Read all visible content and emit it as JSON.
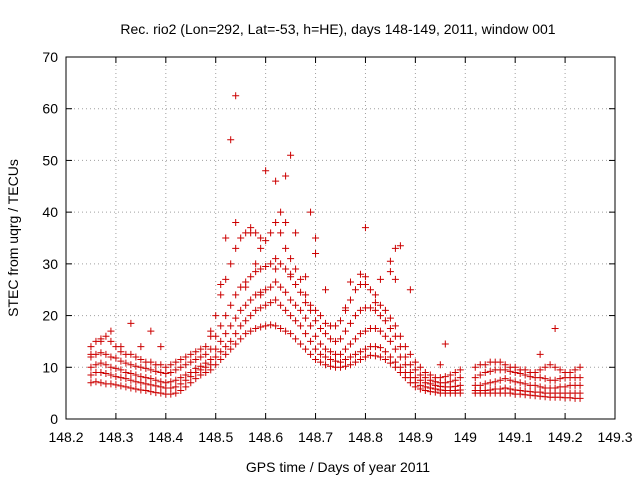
{
  "chart_data": {
    "type": "scatter",
    "title": "Rec. rio2 (Lon=292, Lat=-53, h=HE), days 148-149, 2011, window 001",
    "xlabel": "GPS time / Days of year 2011",
    "ylabel": "STEC from uqrg / TECUs",
    "xlim": [
      148.2,
      149.3
    ],
    "ylim": [
      0,
      70
    ],
    "xticks": [
      "148.2",
      "148.3",
      "148.4",
      "148.5",
      "148.6",
      "148.7",
      "148.8",
      "148.9",
      "149",
      "149.1",
      "149.2",
      "149.3"
    ],
    "xtick_values": [
      148.2,
      148.3,
      148.4,
      148.5,
      148.6,
      148.7,
      148.8,
      148.9,
      149.0,
      149.1,
      149.2,
      149.3
    ],
    "yticks": [
      "0",
      "10",
      "20",
      "30",
      "40",
      "50",
      "60",
      "70"
    ],
    "ytick_values": [
      0,
      10,
      20,
      30,
      40,
      50,
      60,
      70
    ],
    "grid": true,
    "legend": "none",
    "marker": "plus",
    "color": "#cc0000",
    "series": [
      {
        "x": [
          148.25,
          148.26,
          148.27,
          148.28,
          148.29,
          148.3,
          148.31,
          148.32,
          148.33,
          148.34,
          148.35,
          148.36,
          148.37,
          148.38,
          148.39,
          148.4,
          148.41,
          148.42,
          148.43,
          148.44,
          148.45,
          148.46,
          148.47,
          148.48,
          148.49,
          148.5,
          148.51,
          148.52,
          148.53,
          148.54,
          148.55,
          148.56,
          148.57,
          148.58,
          148.59,
          148.6,
          148.61,
          148.62,
          148.63,
          148.64,
          148.65,
          148.66,
          148.67,
          148.68,
          148.69,
          148.7,
          148.71,
          148.72,
          148.73,
          148.74,
          148.75,
          148.76,
          148.77,
          148.78,
          148.79,
          148.8,
          148.81,
          148.82,
          148.83,
          148.84,
          148.85,
          148.86,
          148.87,
          148.88,
          148.89,
          148.9,
          148.91,
          148.92,
          148.93,
          148.94,
          148.95,
          148.96,
          148.97,
          148.98,
          148.99,
          149.02,
          149.03,
          149.04,
          149.05,
          149.06,
          149.07,
          149.08,
          149.09,
          149.1,
          149.11,
          149.12,
          149.13,
          149.14,
          149.15,
          149.16,
          149.17,
          149.18,
          149.19,
          149.2,
          149.21,
          149.22,
          149.23
        ],
        "values": [
          7.0,
          7.2,
          7.0,
          6.8,
          6.8,
          6.6,
          6.4,
          6.2,
          6.0,
          5.8,
          5.6,
          5.5,
          5.3,
          5.1,
          5.0,
          4.8,
          4.8,
          5.0,
          5.5,
          6.2,
          7.0,
          7.8,
          8.5,
          9.0,
          9.5,
          10.5,
          11.5,
          12.5,
          13.5,
          14.5,
          15.5,
          16.5,
          17.0,
          17.5,
          17.8,
          18.0,
          18.2,
          18.0,
          17.5,
          17.0,
          16.5,
          15.5,
          14.5,
          13.5,
          12.5,
          11.5,
          11.0,
          10.5,
          10.2,
          10.0,
          10.0,
          10.2,
          10.5,
          11.0,
          11.5,
          12.0,
          12.3,
          12.2,
          12.0,
          11.5,
          10.8,
          10.0,
          9.0,
          8.0,
          7.0,
          6.2,
          5.8,
          5.5,
          5.3,
          5.2,
          5.0,
          5.0,
          5.0,
          5.0,
          5.0,
          5.0,
          5.0,
          5.0,
          5.0,
          5.0,
          5.0,
          5.0,
          5.0,
          4.8,
          4.8,
          4.7,
          4.6,
          4.5,
          4.4,
          4.3,
          4.2,
          4.2,
          4.2,
          4.1,
          4.1,
          4.0,
          4.0
        ]
      },
      {
        "x": [
          148.25,
          148.26,
          148.27,
          148.28,
          148.29,
          148.3,
          148.31,
          148.32,
          148.33,
          148.34,
          148.35,
          148.36,
          148.37,
          148.38,
          148.39,
          148.4,
          148.41,
          148.42,
          148.43,
          148.44,
          148.45,
          148.46,
          148.47,
          148.48,
          148.49,
          148.5,
          148.51,
          148.52,
          148.53,
          148.54,
          148.55,
          148.56,
          148.57,
          148.58,
          148.59,
          148.6,
          148.61,
          148.62,
          148.63,
          148.64,
          148.65,
          148.66,
          148.67,
          148.68,
          148.69,
          148.7,
          148.71,
          148.72,
          148.73,
          148.74,
          148.75,
          148.76,
          148.77,
          148.78,
          148.79,
          148.8,
          148.81,
          148.82,
          148.83,
          148.84,
          148.85,
          148.86,
          148.87,
          148.88,
          148.89,
          148.9,
          148.91,
          148.92,
          148.93,
          148.94,
          148.95,
          148.96,
          148.97,
          148.98,
          148.99,
          149.02,
          149.03,
          149.04,
          149.05,
          149.06,
          149.07,
          149.08,
          149.09,
          149.1,
          149.11,
          149.12,
          149.13,
          149.14,
          149.15,
          149.16,
          149.17,
          149.18,
          149.19,
          149.2,
          149.21,
          149.22,
          149.23
        ],
        "values": [
          8.5,
          9.0,
          9.0,
          8.8,
          8.5,
          8.2,
          8.0,
          7.8,
          7.5,
          7.2,
          7.0,
          6.8,
          6.6,
          6.4,
          6.2,
          6.0,
          6.0,
          6.2,
          6.8,
          7.5,
          8.2,
          9.0,
          9.5,
          10.0,
          10.5,
          12.0,
          13.0,
          14.0,
          15.0,
          16.5,
          18.0,
          19.0,
          20.0,
          21.0,
          21.5,
          22.0,
          22.5,
          23.0,
          22.0,
          21.0,
          20.0,
          19.0,
          18.0,
          16.5,
          15.0,
          13.5,
          12.5,
          12.0,
          11.5,
          11.2,
          11.0,
          11.5,
          12.0,
          12.5,
          13.0,
          13.5,
          14.0,
          14.0,
          13.8,
          13.0,
          12.0,
          11.0,
          10.0,
          9.0,
          8.0,
          7.0,
          6.5,
          6.2,
          6.0,
          5.8,
          5.6,
          5.5,
          5.5,
          5.5,
          5.6,
          5.5,
          5.5,
          5.5,
          5.6,
          5.8,
          5.8,
          6.0,
          5.8,
          5.6,
          5.5,
          5.4,
          5.3,
          5.2,
          5.2,
          5.0,
          5.0,
          5.0,
          5.0,
          5.0,
          5.0,
          5.0,
          5.0
        ]
      },
      {
        "x": [
          148.25,
          148.26,
          148.27,
          148.28,
          148.29,
          148.3,
          148.31,
          148.32,
          148.33,
          148.34,
          148.35,
          148.36,
          148.37,
          148.38,
          148.39,
          148.4,
          148.41,
          148.42,
          148.43,
          148.44,
          148.45,
          148.46,
          148.47,
          148.48,
          148.49,
          148.5,
          148.51,
          148.52,
          148.53,
          148.54,
          148.55,
          148.56,
          148.57,
          148.58,
          148.59,
          148.6,
          148.61,
          148.62,
          148.63,
          148.64,
          148.65,
          148.66,
          148.67,
          148.68,
          148.69,
          148.7,
          148.71,
          148.72,
          148.73,
          148.74,
          148.75,
          148.76,
          148.77,
          148.78,
          148.79,
          148.8,
          148.81,
          148.82,
          148.83,
          148.84,
          148.85,
          148.86,
          148.87,
          148.88,
          148.89,
          148.9,
          148.91,
          148.92,
          148.93,
          148.94,
          148.95,
          148.96,
          148.97,
          148.98,
          148.99,
          149.02,
          149.03,
          149.04,
          149.05,
          149.06,
          149.07,
          149.08,
          149.09,
          149.1,
          149.11,
          149.12,
          149.13,
          149.14,
          149.15,
          149.16,
          149.17,
          149.18,
          149.19,
          149.2,
          149.21,
          149.22,
          149.23
        ],
        "values": [
          10.0,
          10.5,
          10.8,
          10.5,
          10.0,
          9.8,
          9.5,
          9.0,
          8.8,
          8.5,
          8.2,
          8.0,
          7.8,
          7.5,
          7.2,
          7.0,
          7.2,
          7.5,
          8.0,
          8.5,
          9.0,
          9.8,
          10.2,
          10.8,
          11.5,
          13.5,
          15.0,
          16.5,
          18.0,
          19.5,
          21.0,
          22.0,
          23.0,
          24.0,
          24.5,
          25.0,
          25.5,
          26.5,
          25.5,
          24.5,
          23.0,
          22.0,
          21.0,
          19.5,
          18.0,
          16.0,
          14.5,
          13.5,
          13.0,
          12.5,
          12.5,
          13.5,
          14.5,
          15.5,
          16.5,
          17.0,
          17.5,
          17.5,
          17.0,
          16.0,
          15.0,
          13.5,
          12.0,
          10.5,
          9.0,
          8.0,
          7.5,
          7.0,
          6.8,
          6.5,
          6.3,
          6.2,
          6.2,
          6.3,
          6.5,
          6.5,
          6.5,
          6.8,
          7.0,
          7.2,
          7.5,
          7.8,
          7.5,
          7.2,
          7.0,
          6.8,
          6.5,
          6.5,
          6.2,
          6.0,
          6.0,
          6.0,
          6.2,
          6.2,
          6.5,
          6.5,
          6.5
        ]
      },
      {
        "x": [
          148.25,
          148.26,
          148.27,
          148.28,
          148.29,
          148.3,
          148.31,
          148.32,
          148.33,
          148.34,
          148.35,
          148.36,
          148.37,
          148.38,
          148.39,
          148.4,
          148.41,
          148.42,
          148.43,
          148.44,
          148.45,
          148.46,
          148.47,
          148.48,
          148.49,
          148.5,
          148.51,
          148.52,
          148.53,
          148.54,
          148.55,
          148.56,
          148.57,
          148.58,
          148.59,
          148.6,
          148.61,
          148.62,
          148.63,
          148.64,
          148.65,
          148.66,
          148.67,
          148.68,
          148.69,
          148.7,
          148.71,
          148.72,
          148.73,
          148.74,
          148.75,
          148.76,
          148.77,
          148.78,
          148.79,
          148.8,
          148.81,
          148.82,
          148.83,
          148.84,
          148.85,
          148.86,
          148.87,
          148.88,
          148.89,
          148.9,
          148.91,
          148.92,
          148.93,
          148.94,
          148.95,
          148.96,
          148.97,
          148.98,
          148.99,
          149.02,
          149.03,
          149.04,
          149.05,
          149.06,
          149.07,
          149.08,
          149.09,
          149.1,
          149.11,
          149.12,
          149.13,
          149.14,
          149.15,
          149.16,
          149.17,
          149.18,
          149.19,
          149.2,
          149.21,
          149.22,
          149.23
        ],
        "values": [
          12.0,
          12.5,
          12.8,
          12.5,
          12.0,
          11.8,
          11.2,
          10.8,
          10.5,
          10.2,
          10.0,
          9.8,
          9.5,
          9.2,
          9.0,
          8.8,
          9.0,
          9.5,
          10.0,
          10.5,
          11.0,
          11.5,
          12.0,
          12.5,
          13.5,
          16.0,
          18.0,
          20.0,
          22.0,
          24.0,
          25.5,
          26.5,
          27.5,
          28.5,
          29.0,
          29.5,
          30.0,
          31.0,
          30.0,
          29.0,
          27.5,
          26.0,
          24.5,
          22.5,
          21.0,
          19.0,
          17.5,
          16.5,
          15.5,
          15.0,
          15.5,
          17.0,
          18.5,
          20.0,
          21.0,
          21.5,
          21.5,
          21.0,
          20.0,
          19.0,
          17.5,
          16.0,
          14.0,
          12.0,
          10.5,
          9.5,
          8.5,
          8.0,
          7.5,
          7.2,
          7.0,
          7.0,
          7.2,
          7.5,
          8.0,
          8.0,
          8.5,
          9.0,
          9.2,
          9.5,
          9.5,
          9.5,
          9.2,
          9.0,
          8.8,
          8.5,
          8.2,
          8.0,
          8.0,
          7.8,
          7.5,
          7.5,
          7.8,
          8.0,
          8.0,
          8.0,
          8.0
        ]
      },
      {
        "x": [
          148.25,
          148.26,
          148.27,
          148.28,
          148.29,
          148.3,
          148.31,
          148.32,
          148.33,
          148.34,
          148.35,
          148.36,
          148.37,
          148.38,
          148.39,
          148.4,
          148.41,
          148.42,
          148.43,
          148.44,
          148.45,
          148.46,
          148.47,
          148.48,
          148.49,
          148.5,
          148.51,
          148.52,
          148.53,
          148.54,
          148.55,
          148.56,
          148.57,
          148.58,
          148.59,
          148.6,
          148.61,
          148.62,
          148.63,
          148.64,
          148.65,
          148.66,
          148.67,
          148.68,
          148.69,
          148.7,
          148.71,
          148.72,
          148.73,
          148.74,
          148.75,
          148.76,
          148.77,
          148.78,
          148.79,
          148.8,
          148.81,
          148.82,
          148.83,
          148.84,
          148.85,
          148.86,
          148.87,
          148.88,
          148.89,
          148.9,
          148.91,
          148.92,
          148.93,
          148.94,
          148.95,
          148.96,
          148.97,
          148.98,
          148.99,
          149.02,
          149.03,
          149.04,
          149.05,
          149.06,
          149.07,
          149.08,
          149.09,
          149.1,
          149.11,
          149.12,
          149.13,
          149.14,
          149.15,
          149.16,
          149.17,
          149.18,
          149.19,
          149.2,
          149.21,
          149.22,
          149.23
        ],
        "values": [
          14.0,
          15.0,
          15.5,
          16.0,
          15.0,
          14.0,
          13.0,
          12.5,
          12.5,
          12.0,
          11.5,
          11.0,
          11.0,
          10.5,
          10.5,
          10.0,
          10.5,
          11.0,
          11.5,
          12.0,
          12.5,
          13.0,
          13.5,
          14.0,
          16.0,
          20.0,
          24.0,
          27.0,
          30.0,
          33.0,
          35.0,
          36.0,
          37.0,
          36.0,
          35.0,
          34.5,
          36.0,
          38.0,
          36.0,
          33.0,
          31.0,
          29.0,
          27.0,
          24.0,
          22.0,
          21.0,
          20.0,
          18.5,
          18.0,
          18.0,
          19.0,
          21.0,
          23.0,
          25.0,
          26.0,
          26.0,
          25.0,
          24.0,
          22.0,
          21.0,
          19.5,
          18.0,
          16.0,
          14.0,
          12.5,
          11.0,
          10.0,
          9.0,
          8.5,
          8.0,
          8.0,
          8.2,
          8.5,
          9.0,
          9.5,
          10.0,
          10.5,
          10.5,
          11.0,
          11.0,
          11.0,
          10.5,
          10.0,
          10.0,
          9.5,
          9.5,
          9.0,
          9.0,
          9.5,
          10.0,
          10.5,
          10.0,
          9.5,
          9.0,
          9.0,
          9.5,
          10.0
        ]
      },
      {
        "x": [
          148.25,
          148.27,
          148.29,
          148.31,
          148.33,
          148.35,
          148.37,
          148.39,
          148.49,
          148.51,
          148.52,
          148.53,
          148.54,
          148.56,
          148.58,
          148.59,
          148.6,
          148.62,
          148.63,
          148.64,
          148.65,
          148.66,
          148.68,
          148.69,
          148.7,
          148.77,
          148.79,
          148.8,
          148.83,
          148.85,
          148.86,
          148.87,
          148.89,
          148.95,
          148.96,
          149.15,
          149.18
        ],
        "values": [
          12.5,
          15.0,
          17.0,
          14.0,
          18.5,
          14.0,
          17.0,
          14.0,
          17.0,
          26.0,
          35.0,
          54.0,
          38.0,
          25.5,
          30.0,
          33.0,
          48.0,
          46.0,
          40.0,
          38.0,
          51.0,
          36.0,
          27.5,
          40.0,
          32.0,
          26.5,
          28.0,
          37.0,
          27.0,
          30.5,
          33.0,
          33.5,
          25.0,
          10.5,
          14.5,
          12.5,
          17.5
        ]
      },
      {
        "x": [
          148.54,
          148.57,
          148.59,
          148.62,
          148.64,
          148.65,
          148.7,
          148.72,
          148.76,
          148.8,
          148.82,
          148.85,
          148.86
        ],
        "values": [
          62.5,
          36.0,
          24.0,
          29.0,
          47.0,
          28.0,
          35.0,
          25.0,
          21.5,
          27.5,
          22.5,
          28.5,
          27.0
        ]
      }
    ]
  }
}
